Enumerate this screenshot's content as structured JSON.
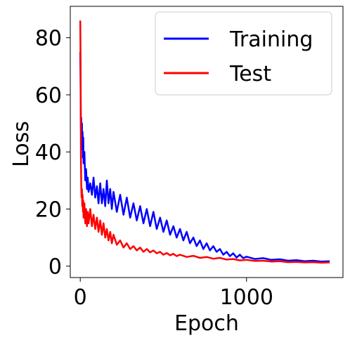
{
  "chart_data": {
    "type": "line",
    "title": "",
    "xlabel": "Epoch",
    "ylabel": "Loss",
    "xlim": [
      -60,
      1580
    ],
    "ylim": [
      -4,
      91
    ],
    "x_ticks": [
      0,
      1000
    ],
    "y_ticks": [
      0,
      20,
      40,
      60,
      80
    ],
    "grid": false,
    "legend_position": "top-right",
    "series": [
      {
        "name": "Training",
        "color": "#0000ff",
        "points": [
          [
            0,
            75
          ],
          [
            2,
            62
          ],
          [
            4,
            48
          ],
          [
            6,
            52
          ],
          [
            8,
            44
          ],
          [
            10,
            50
          ],
          [
            12,
            41
          ],
          [
            14,
            47
          ],
          [
            16,
            38
          ],
          [
            18,
            45
          ],
          [
            20,
            36
          ],
          [
            25,
            40
          ],
          [
            30,
            30
          ],
          [
            35,
            34
          ],
          [
            40,
            27
          ],
          [
            45,
            31
          ],
          [
            50,
            26
          ],
          [
            60,
            29
          ],
          [
            70,
            25
          ],
          [
            80,
            31
          ],
          [
            90,
            24
          ],
          [
            100,
            28
          ],
          [
            110,
            22
          ],
          [
            120,
            29
          ],
          [
            130,
            22
          ],
          [
            140,
            27
          ],
          [
            150,
            21
          ],
          [
            160,
            30
          ],
          [
            170,
            22
          ],
          [
            180,
            27
          ],
          [
            190,
            20
          ],
          [
            200,
            26
          ],
          [
            220,
            19
          ],
          [
            240,
            25
          ],
          [
            260,
            18
          ],
          [
            280,
            24
          ],
          [
            300,
            17
          ],
          [
            320,
            22
          ],
          [
            340,
            16
          ],
          [
            360,
            21
          ],
          [
            380,
            15
          ],
          [
            400,
            20
          ],
          [
            420,
            14
          ],
          [
            440,
            19
          ],
          [
            460,
            13
          ],
          [
            480,
            17
          ],
          [
            500,
            12
          ],
          [
            520,
            16
          ],
          [
            540,
            11
          ],
          [
            560,
            14
          ],
          [
            580,
            10
          ],
          [
            600,
            13
          ],
          [
            620,
            9
          ],
          [
            640,
            12
          ],
          [
            660,
            8
          ],
          [
            680,
            10
          ],
          [
            700,
            7
          ],
          [
            720,
            9
          ],
          [
            740,
            6
          ],
          [
            760,
            8
          ],
          [
            780,
            5.5
          ],
          [
            800,
            7
          ],
          [
            820,
            5
          ],
          [
            840,
            6
          ],
          [
            860,
            4
          ],
          [
            880,
            5
          ],
          [
            900,
            3.5
          ],
          [
            920,
            4.5
          ],
          [
            940,
            3
          ],
          [
            960,
            4
          ],
          [
            980,
            2.8
          ],
          [
            1000,
            3.3
          ],
          [
            1050,
            2.5
          ],
          [
            1100,
            2.8
          ],
          [
            1150,
            2.2
          ],
          [
            1200,
            2.4
          ],
          [
            1250,
            1.9
          ],
          [
            1300,
            2.1
          ],
          [
            1350,
            1.7
          ],
          [
            1400,
            1.9
          ],
          [
            1450,
            1.6
          ],
          [
            1500,
            1.7
          ]
        ]
      },
      {
        "name": "Test",
        "color": "#ff0000",
        "points": [
          [
            0,
            86
          ],
          [
            2,
            70
          ],
          [
            4,
            40
          ],
          [
            6,
            28
          ],
          [
            8,
            24
          ],
          [
            10,
            27
          ],
          [
            12,
            21
          ],
          [
            14,
            25
          ],
          [
            16,
            19
          ],
          [
            18,
            23
          ],
          [
            20,
            17
          ],
          [
            25,
            22
          ],
          [
            30,
            15
          ],
          [
            35,
            20
          ],
          [
            40,
            14
          ],
          [
            45,
            19
          ],
          [
            50,
            15
          ],
          [
            60,
            20
          ],
          [
            70,
            14
          ],
          [
            80,
            18
          ],
          [
            90,
            13
          ],
          [
            100,
            17
          ],
          [
            110,
            12
          ],
          [
            120,
            16
          ],
          [
            130,
            11
          ],
          [
            140,
            15
          ],
          [
            150,
            10
          ],
          [
            160,
            13
          ],
          [
            170,
            9
          ],
          [
            180,
            12
          ],
          [
            190,
            8
          ],
          [
            200,
            11
          ],
          [
            220,
            7.5
          ],
          [
            240,
            9
          ],
          [
            260,
            6.5
          ],
          [
            280,
            8
          ],
          [
            300,
            6
          ],
          [
            320,
            7
          ],
          [
            340,
            5.5
          ],
          [
            360,
            6.5
          ],
          [
            380,
            5
          ],
          [
            400,
            6
          ],
          [
            420,
            4.8
          ],
          [
            440,
            5.5
          ],
          [
            460,
            4.5
          ],
          [
            480,
            5
          ],
          [
            500,
            4
          ],
          [
            520,
            4.6
          ],
          [
            540,
            3.8
          ],
          [
            560,
            4.3
          ],
          [
            580,
            3.5
          ],
          [
            600,
            4
          ],
          [
            640,
            3.2
          ],
          [
            680,
            3.6
          ],
          [
            720,
            2.9
          ],
          [
            760,
            3.2
          ],
          [
            800,
            2.6
          ],
          [
            840,
            2.9
          ],
          [
            880,
            2.3
          ],
          [
            920,
            2.5
          ],
          [
            960,
            2.0
          ],
          [
            1000,
            2.2
          ],
          [
            1050,
            1.8
          ],
          [
            1100,
            1.9
          ],
          [
            1150,
            1.6
          ],
          [
            1200,
            1.7
          ],
          [
            1250,
            1.4
          ],
          [
            1300,
            1.5
          ],
          [
            1350,
            1.3
          ],
          [
            1400,
            1.4
          ],
          [
            1450,
            1.2
          ],
          [
            1500,
            1.3
          ]
        ]
      }
    ]
  }
}
